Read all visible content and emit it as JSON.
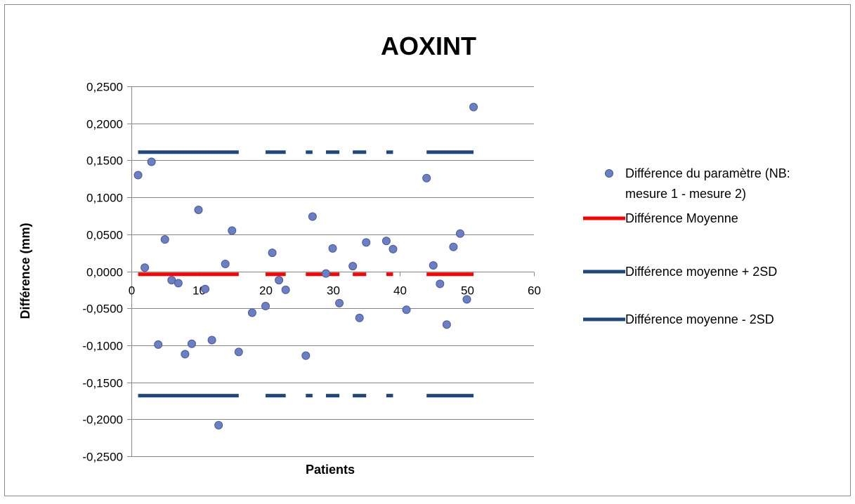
{
  "chart_data": {
    "type": "scatter",
    "title": "AOXINT",
    "xlabel": "Patients",
    "ylabel": "Différence (mm)",
    "xlim": [
      0,
      60
    ],
    "ylim": [
      -0.25,
      0.25
    ],
    "x_ticks": [
      0,
      10,
      20,
      30,
      40,
      50,
      60
    ],
    "y_ticks": [
      0.25,
      0.2,
      0.15,
      0.1,
      0.05,
      0.0,
      -0.05,
      -0.1,
      -0.15,
      -0.2,
      -0.25
    ],
    "x_tick_labels": [
      "0",
      "10",
      "20",
      "30",
      "40",
      "50",
      "60"
    ],
    "y_tick_labels": [
      "0,2500",
      "0,2000",
      "0,1500",
      "0,1000",
      "0,0500",
      "0,0000",
      "-0,0500",
      "-0,1000",
      "-0,1500",
      "-0,2000",
      "-0,2500"
    ],
    "grid": "horizontal",
    "legend_position": "right",
    "series": [
      {
        "name": "Différence du paramètre (NB: mesure 1 - mesure 2)",
        "kind": "scatter",
        "color": "#6b7fc4",
        "x": [
          1,
          2,
          3,
          4,
          5,
          6,
          7,
          8,
          9,
          10,
          11,
          12,
          13,
          14,
          15,
          16,
          18,
          20,
          21,
          22,
          23,
          26,
          27,
          29,
          30,
          31,
          33,
          34,
          35,
          38,
          39,
          41,
          44,
          45,
          46,
          47,
          48,
          49,
          50,
          51
        ],
        "values": [
          0.13,
          0.005,
          0.148,
          -0.099,
          0.043,
          -0.012,
          -0.016,
          -0.112,
          -0.098,
          0.083,
          -0.024,
          -0.093,
          -0.208,
          0.01,
          0.055,
          -0.109,
          -0.056,
          -0.047,
          0.025,
          -0.012,
          -0.025,
          -0.114,
          0.074,
          -0.003,
          0.031,
          -0.043,
          0.007,
          -0.063,
          0.039,
          0.041,
          0.03,
          -0.052,
          0.126,
          0.008,
          -0.017,
          -0.072,
          0.033,
          0.051,
          -0.038,
          0.222
        ]
      },
      {
        "name": "Différence Moyenne",
        "kind": "line",
        "color": "#ff0000",
        "value": -0.004,
        "segments": [
          [
            1,
            16
          ],
          [
            20,
            23
          ],
          [
            26,
            31
          ],
          [
            33,
            35
          ],
          [
            38,
            39
          ],
          [
            44,
            51
          ]
        ]
      },
      {
        "name": "Différence moyenne + 2SD",
        "kind": "line",
        "color": "#1f497d",
        "value": 0.161,
        "segments": [
          [
            1,
            16
          ],
          [
            20,
            23
          ],
          [
            26,
            27
          ],
          [
            29,
            31
          ],
          [
            33,
            35
          ],
          [
            38,
            39
          ],
          [
            44,
            51
          ]
        ]
      },
      {
        "name": "Différence moyenne - 2SD",
        "kind": "line",
        "color": "#1f497d",
        "value": -0.168,
        "segments": [
          [
            1,
            16
          ],
          [
            20,
            23
          ],
          [
            26,
            27
          ],
          [
            29,
            31
          ],
          [
            33,
            35
          ],
          [
            38,
            39
          ],
          [
            44,
            51
          ]
        ]
      }
    ],
    "legend_lines": [
      [
        "Différence du paramètre (NB:",
        "mesure 1 - mesure 2)"
      ],
      [
        "Différence Moyenne"
      ],
      [
        "Différence moyenne + 2SD"
      ],
      [
        "Différence moyenne - 2SD"
      ]
    ]
  }
}
